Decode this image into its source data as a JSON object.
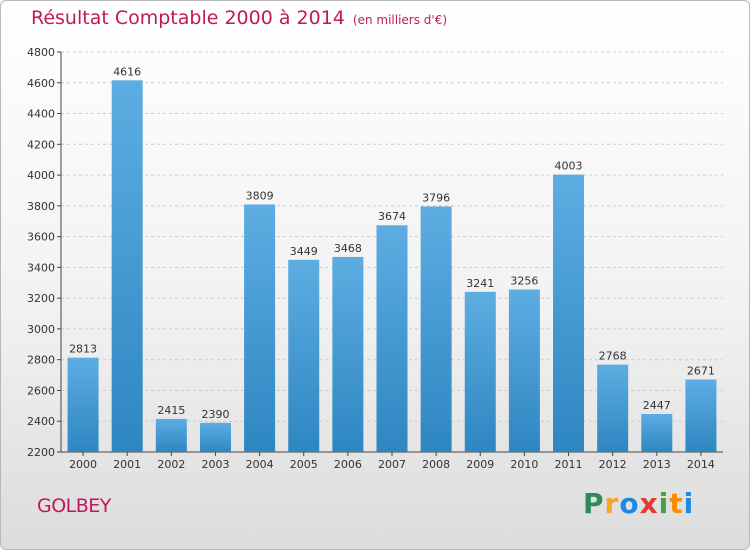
{
  "title": "Résultat Comptable 2000 à 2014",
  "subtitle": "(en milliers d'€)",
  "commune": "GOLBEY",
  "logo": {
    "text": "Proxiti",
    "letters": [
      {
        "ch": "P",
        "color": "#2e8b57"
      },
      {
        "ch": "r",
        "color": "#f5a623"
      },
      {
        "ch": "o",
        "color": "#1e88e5"
      },
      {
        "ch": "x",
        "color": "#e53935"
      },
      {
        "ch": "i",
        "color": "#43a047"
      },
      {
        "ch": "t",
        "color": "#fb8c00"
      },
      {
        "ch": "i",
        "color": "#1e88e5"
      }
    ]
  },
  "colors": {
    "bar_top": "#5dade2",
    "bar_bottom": "#2e86c1",
    "accent": "#c2185b",
    "grid": "#cccccc"
  },
  "chart_data": {
    "type": "bar",
    "title": "Résultat Comptable 2000 à 2014",
    "subtitle": "(en milliers d'€)",
    "categories": [
      "2000",
      "2001",
      "2002",
      "2003",
      "2004",
      "2005",
      "2006",
      "2007",
      "2008",
      "2009",
      "2010",
      "2011",
      "2012",
      "2013",
      "2014"
    ],
    "values": [
      2813,
      4616,
      2415,
      2390,
      3809,
      3449,
      3468,
      3674,
      3796,
      3241,
      3256,
      4003,
      2768,
      2447,
      2671
    ],
    "ylim": [
      2200,
      4800
    ],
    "yticks": [
      2200,
      2400,
      2600,
      2800,
      3000,
      3200,
      3400,
      3600,
      3800,
      4000,
      4200,
      4400,
      4600,
      4800
    ],
    "grid": true,
    "xlabel": "",
    "ylabel": ""
  }
}
